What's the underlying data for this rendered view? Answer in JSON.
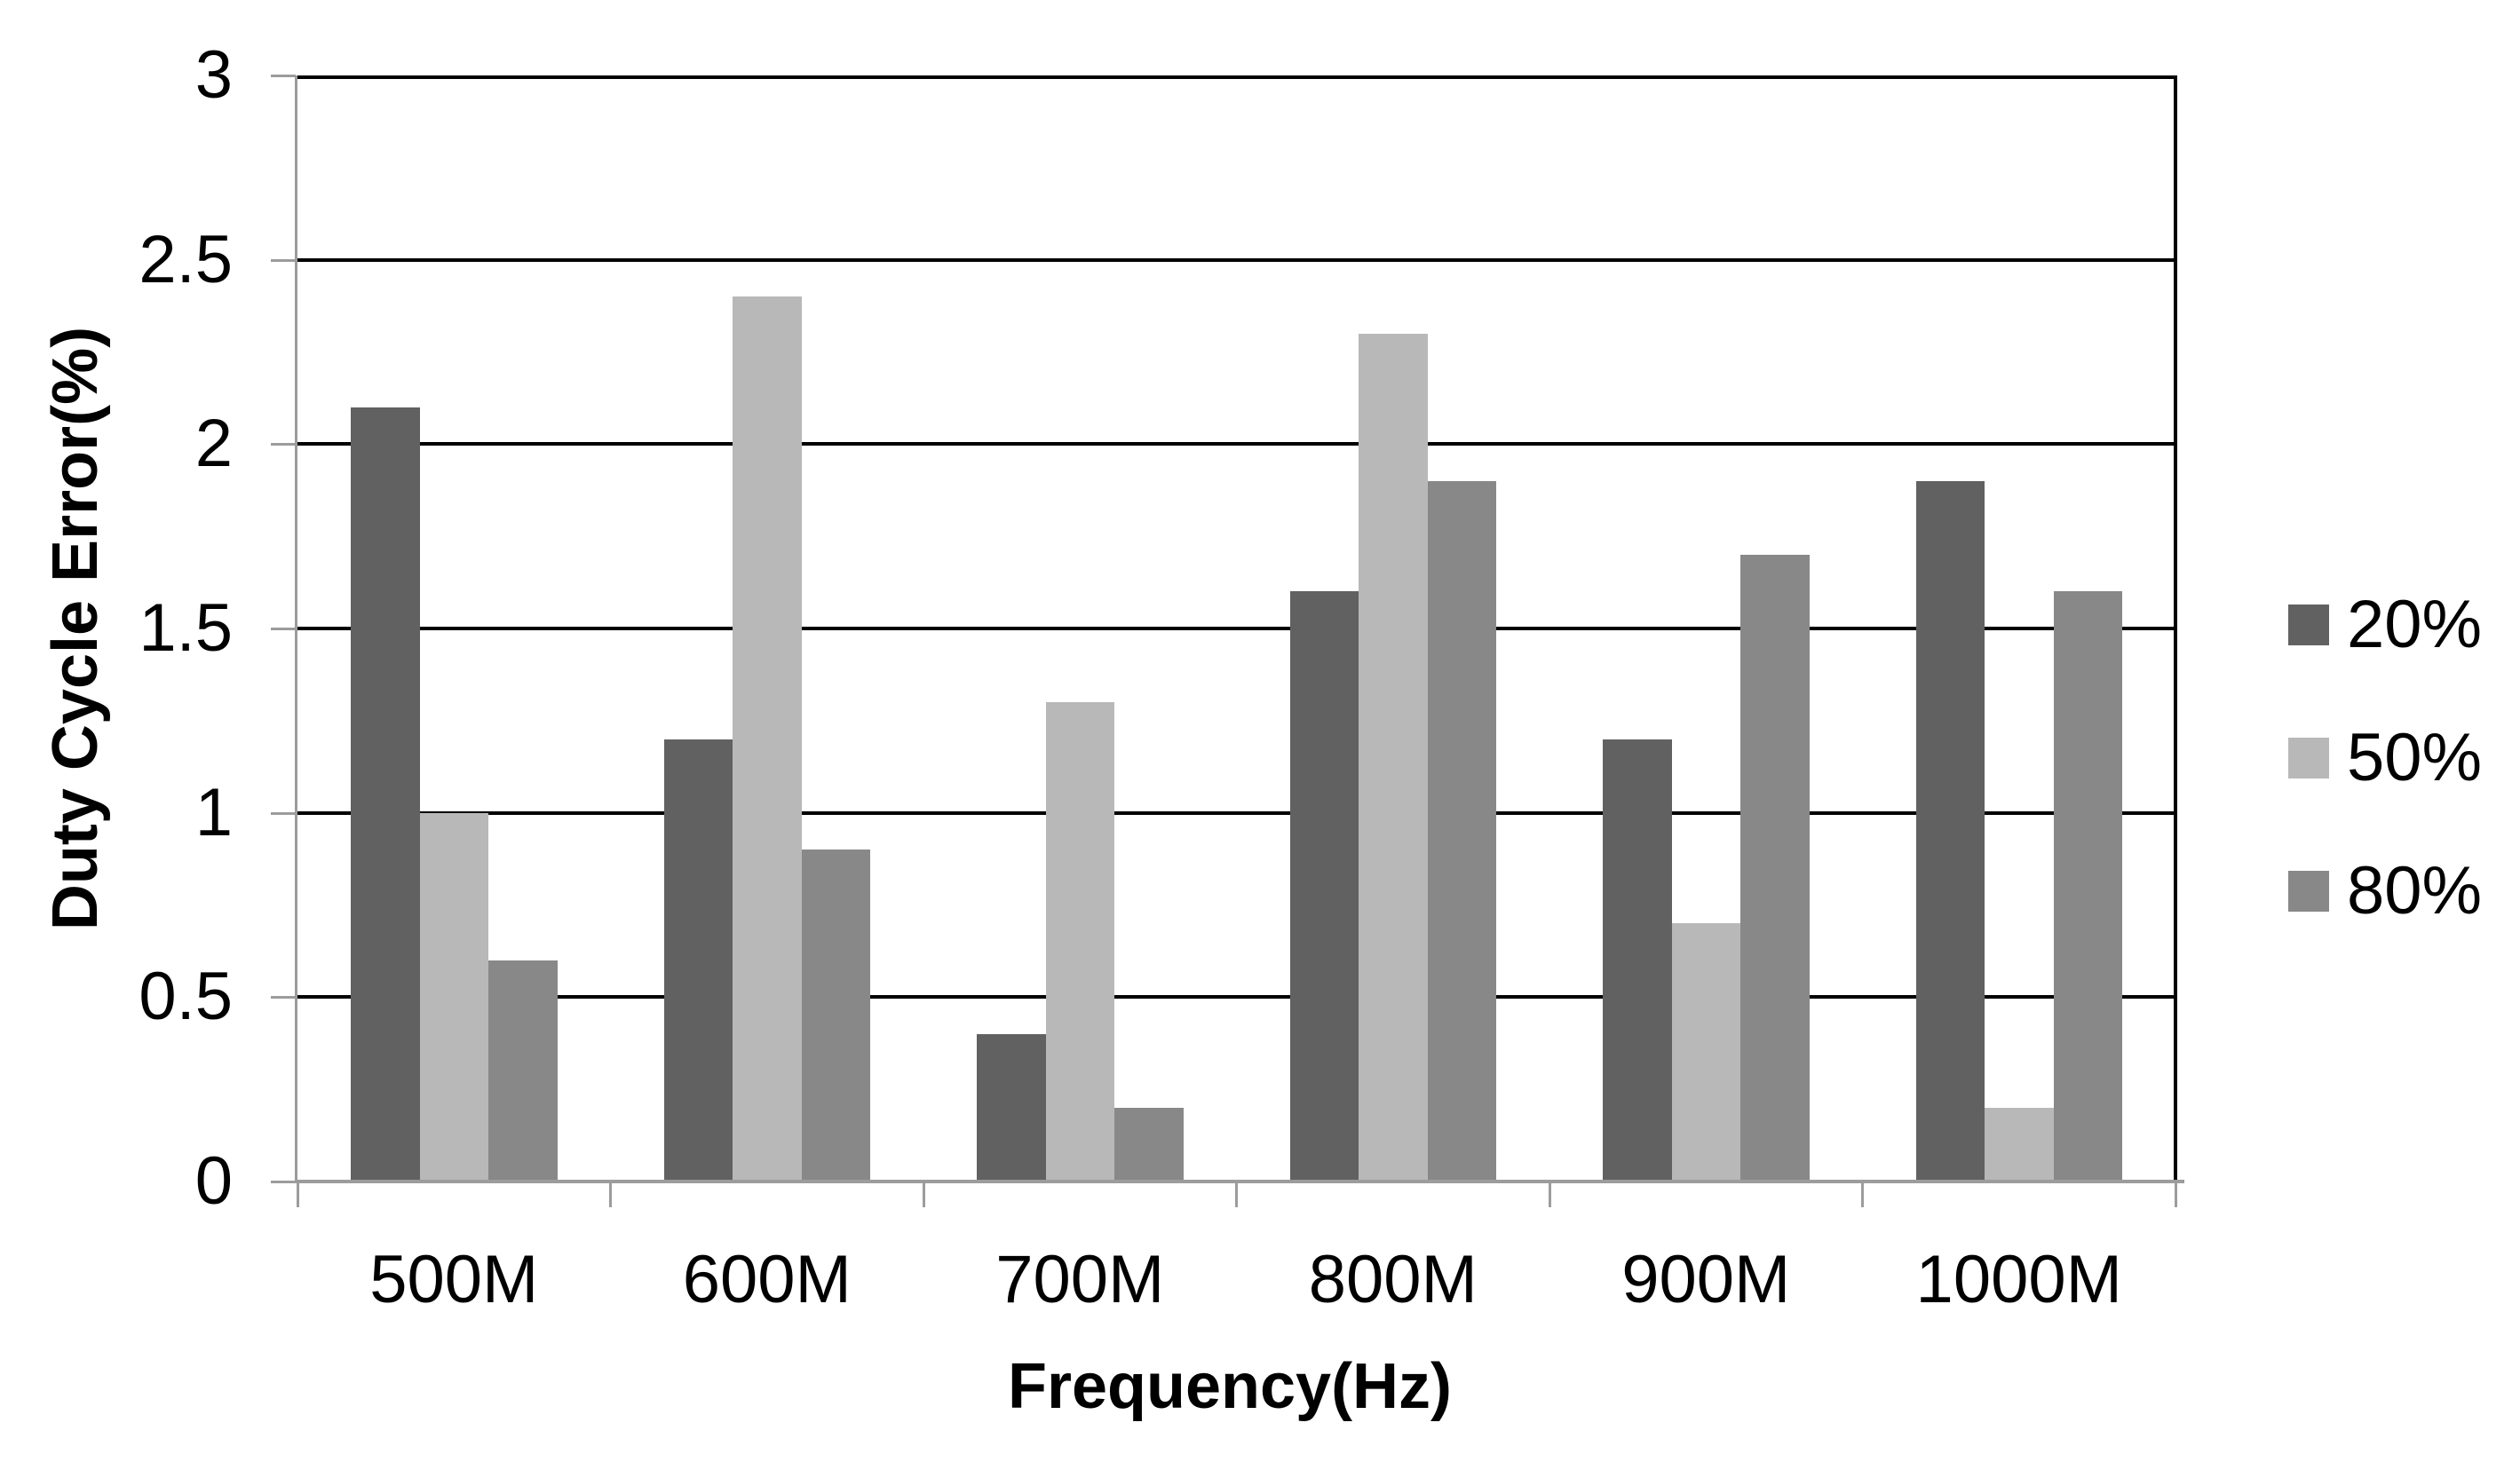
{
  "chart_data": {
    "type": "bar",
    "title": "",
    "categories": [
      "500M",
      "600M",
      "700M",
      "800M",
      "900M",
      "1000M"
    ],
    "series": [
      {
        "name": "20%",
        "color": "#616161",
        "values": [
          2.1,
          1.2,
          0.4,
          1.6,
          1.2,
          1.9
        ]
      },
      {
        "name": "50%",
        "color": "#b8b8b8",
        "values": [
          1.0,
          2.4,
          1.3,
          2.3,
          0.7,
          0.2
        ]
      },
      {
        "name": "80%",
        "color": "#888888",
        "values": [
          0.6,
          0.9,
          0.2,
          1.9,
          1.7,
          1.6
        ]
      }
    ],
    "xlabel": "Frequency(Hz)",
    "ylabel": "Duty Cycle Error(%)",
    "ylim": [
      0,
      3
    ],
    "ytick_step": 0.5,
    "ytick_labels": [
      "3",
      "2.5",
      "2",
      "1.5",
      "1",
      "0.5",
      "0"
    ],
    "grid": "horizontal",
    "gridline_color": "#000000",
    "axis_line_color": "#9c9c9c",
    "legend_position": "right",
    "plot_background": "#ffffff"
  }
}
